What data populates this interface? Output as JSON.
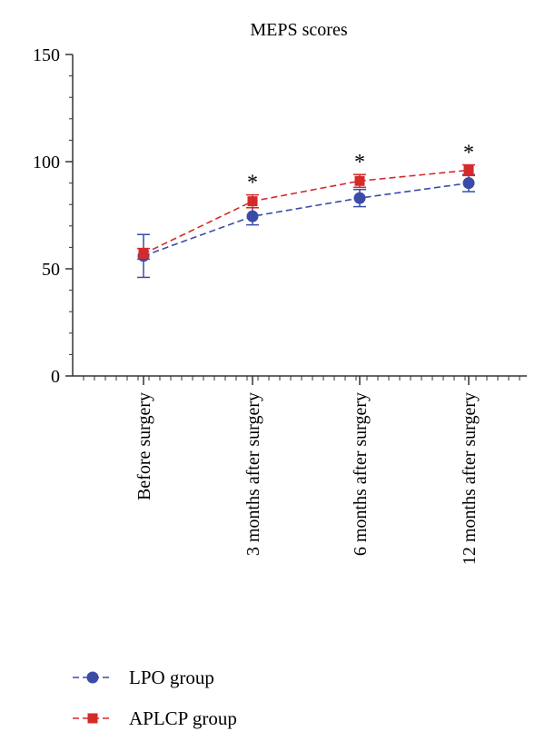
{
  "chart_data": {
    "type": "line",
    "title": "MEPS scores",
    "xlabel": "",
    "ylabel": "",
    "ylim": [
      0,
      150
    ],
    "yticks": [
      0,
      50,
      100,
      150
    ],
    "categories": [
      "Before surgery",
      "3 months after surgery",
      "6 months after surgery",
      "12 months after surgery"
    ],
    "series": [
      {
        "name": "LPO group",
        "marker": "circle",
        "color": "#3b4ba8",
        "values": [
          56,
          74.5,
          83,
          90
        ],
        "error": [
          10,
          4,
          4,
          4
        ]
      },
      {
        "name": "APLCP group",
        "marker": "square",
        "color": "#d42a2a",
        "values": [
          57,
          81.5,
          91,
          96
        ],
        "error": [
          2.5,
          3,
          3,
          2.5
        ]
      }
    ],
    "annotations": [
      {
        "category": "3 months after surgery",
        "text": "*"
      },
      {
        "category": "6 months after surgery",
        "text": "*"
      },
      {
        "category": "12 months after surgery",
        "text": "*"
      }
    ],
    "legend_position": "bottom-left",
    "grid": false
  }
}
